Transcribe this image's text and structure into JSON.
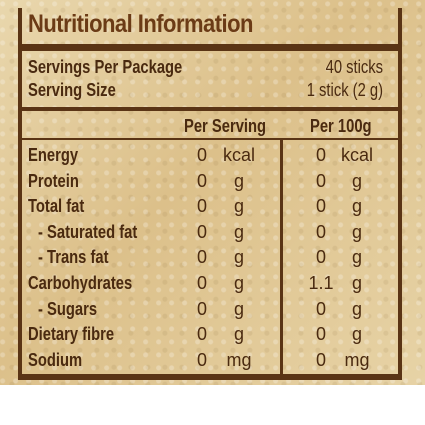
{
  "title": "Nutritional Information",
  "servings_per_package_label": "Servings Per Package",
  "servings_per_package_value": "40 sticks",
  "serving_size_label": "Serving Size",
  "serving_size_value": "1 stick (2 g)",
  "column_headers": {
    "per_serving": "Per Serving",
    "per_100g": "Per 100g"
  },
  "rows": [
    {
      "name": "Energy",
      "serving": "0",
      "serving_unit": "kcal",
      "per100": "0",
      "per100_unit": "kcal"
    },
    {
      "name": "Protein",
      "serving": "0",
      "serving_unit": "g",
      "per100": "0",
      "per100_unit": "g"
    },
    {
      "name": "Total fat",
      "serving": "0",
      "serving_unit": "g",
      "per100": "0",
      "per100_unit": "g"
    },
    {
      "name": "- Saturated fat",
      "serving": "0",
      "serving_unit": "g",
      "per100": "0",
      "per100_unit": "g"
    },
    {
      "name": "- Trans fat",
      "serving": "0",
      "serving_unit": "g",
      "per100": "0",
      "per100_unit": "g"
    },
    {
      "name": "Carbohydrates",
      "serving": "0",
      "serving_unit": "g",
      "per100": "1.1",
      "per100_unit": "g"
    },
    {
      "name": "- Sugars",
      "serving": "0",
      "serving_unit": "g",
      "per100": "0",
      "per100_unit": "g"
    },
    {
      "name": "Dietary fibre",
      "serving": "0",
      "serving_unit": "g",
      "per100": "0",
      "per100_unit": "g"
    },
    {
      "name": "Sodium",
      "serving": "0",
      "serving_unit": "mg",
      "per100": "0",
      "per100_unit": "mg"
    }
  ]
}
